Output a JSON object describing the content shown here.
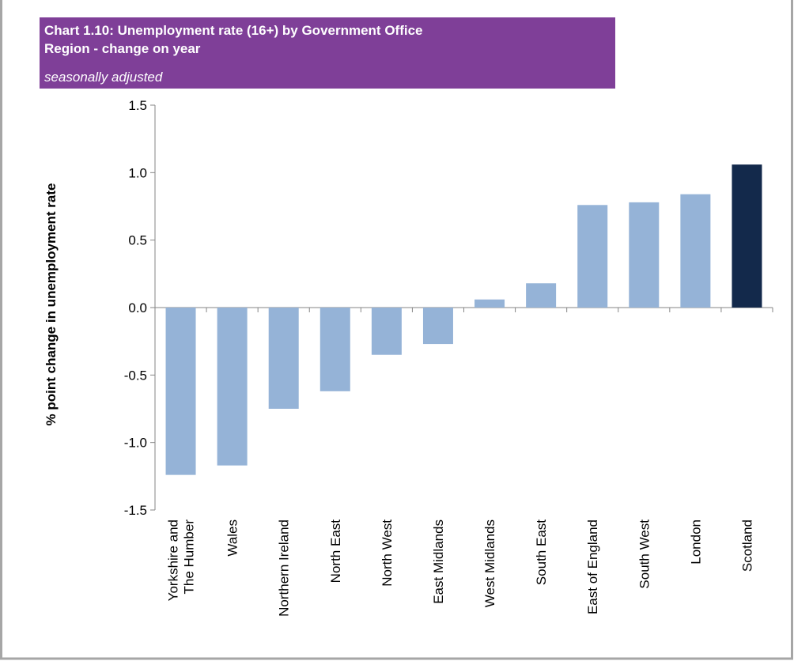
{
  "chart_data": {
    "type": "bar",
    "title": "Chart 1.10: Unemployment rate (16+) by Government Office Region - change on year",
    "subtitle": "seasonally adjusted",
    "y_label": "% point change in unemployment rate",
    "categories": [
      "Yorkshire and\nThe Humber",
      "Wales",
      "Northern Ireland",
      "North East",
      "North West",
      "East Midlands",
      "West Midlands",
      "South East",
      "East of England",
      "South West",
      "London",
      "Scotland"
    ],
    "values": [
      -1.24,
      -1.17,
      -0.75,
      -0.62,
      -0.35,
      -0.27,
      0.06,
      0.18,
      0.76,
      0.78,
      0.84,
      1.06
    ],
    "colors": [
      "#95b3d7",
      "#95b3d7",
      "#95b3d7",
      "#95b3d7",
      "#95b3d7",
      "#95b3d7",
      "#95b3d7",
      "#95b3d7",
      "#95b3d7",
      "#95b3d7",
      "#95b3d7",
      "#13294b"
    ],
    "ylim": [
      -1.5,
      1.5
    ],
    "yticks": [
      -1.5,
      {
        "value": -1,
        "label": "-1.0"
      },
      -0.5,
      {
        "value": 0,
        "label": "0.0"
      },
      0.5,
      {
        "value": 1,
        "label": "1.0"
      },
      1.5
    ],
    "grid": false
  }
}
